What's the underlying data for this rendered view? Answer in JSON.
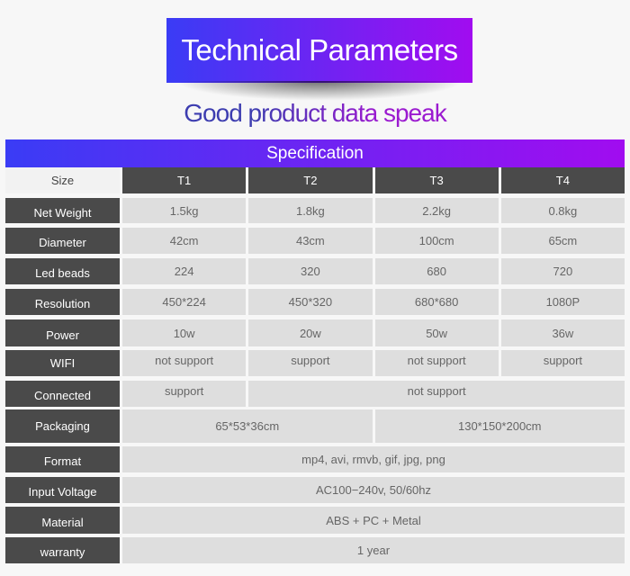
{
  "title": "Technical Parameters",
  "subtitle": "Good product data speak",
  "spec_header": "Specification",
  "columns": {
    "label": "Size",
    "models": [
      "T1",
      "T2",
      "T3",
      "T4"
    ]
  },
  "rows": [
    {
      "label": "Net Weight",
      "values": [
        "1.5kg",
        "1.8kg",
        "2.2kg",
        "0.8kg"
      ]
    },
    {
      "label": "Diameter",
      "values": [
        "42cm",
        "43cm",
        "100cm",
        "65cm"
      ]
    },
    {
      "label": "Led beads",
      "values": [
        "224",
        "320",
        "680",
        "720"
      ]
    },
    {
      "label": "Resolution",
      "values": [
        "450*224",
        "450*320",
        "680*680",
        "1080P"
      ]
    },
    {
      "label": "Power",
      "values": [
        "10w",
        "20w",
        "50w",
        "36w"
      ]
    },
    {
      "label": "WIFI",
      "values": [
        "not support",
        "support",
        "not support",
        "support"
      ]
    },
    {
      "label": "Connected",
      "values": [
        "support",
        "not support"
      ]
    },
    {
      "label": "Packaging",
      "values": [
        "65*53*36cm",
        "130*150*200cm"
      ]
    },
    {
      "label": "Format",
      "values": [
        "mp4, avi, rmvb, gif, jpg, png"
      ]
    },
    {
      "label": "Input Voltage",
      "values": [
        "AC100−240v, 50/60hz"
      ]
    },
    {
      "label": "Material",
      "values": [
        "ABS + PC + Metal"
      ]
    },
    {
      "label": "warranty",
      "values": [
        "1 year"
      ]
    }
  ],
  "colors": {
    "gradient_start": "#3a3cf5",
    "gradient_end": "#a10cf0",
    "label_bg": "#4a4a4a",
    "cell_bg": "#dedede"
  }
}
